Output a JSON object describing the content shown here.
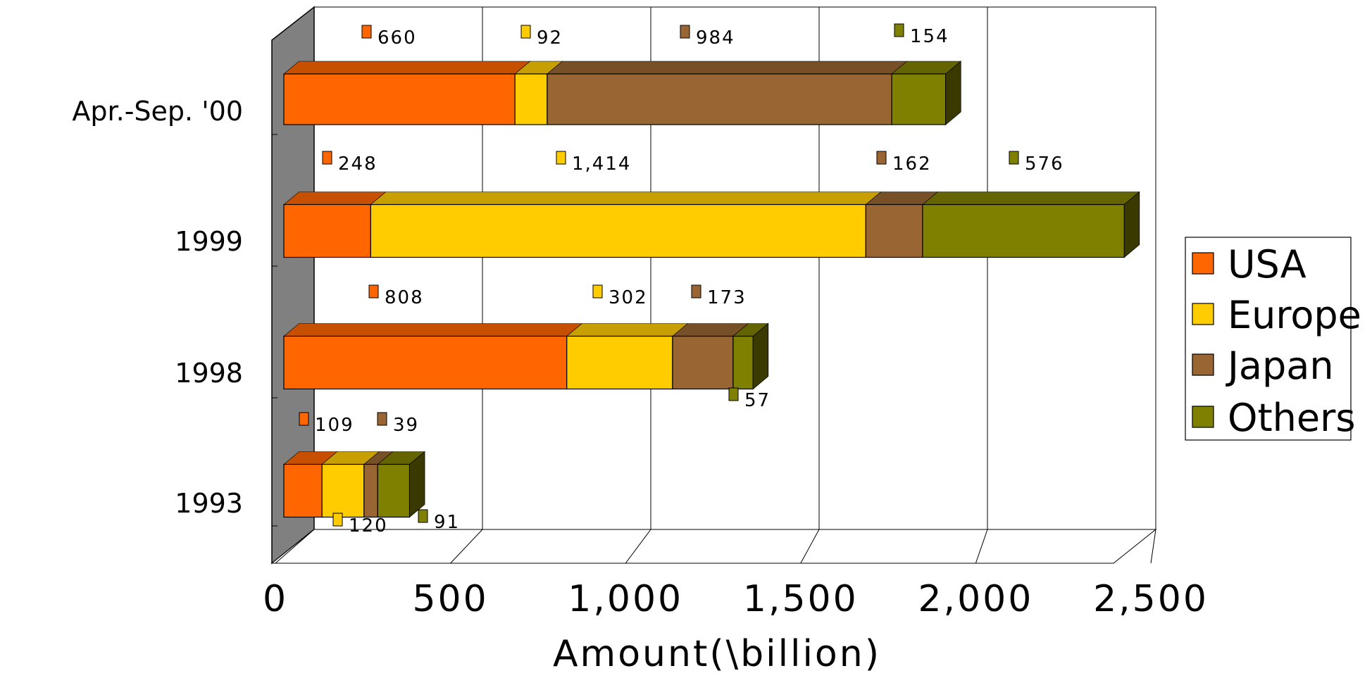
{
  "chart_data": {
    "type": "bar",
    "orientation": "horizontal",
    "stacked": true,
    "three_d": true,
    "categories": [
      "Apr.-Sep. '00",
      "1999",
      "1998",
      "1993"
    ],
    "series": [
      {
        "name": "USA",
        "color": "#FF6600",
        "values": [
          660,
          248,
          808,
          109
        ],
        "labels": [
          "660",
          "248",
          "808",
          "109"
        ]
      },
      {
        "name": "Europe",
        "color": "#FFCC00",
        "values": [
          92,
          1414,
          302,
          120
        ],
        "labels": [
          "92",
          "1,414",
          "302",
          "120"
        ]
      },
      {
        "name": "Japan",
        "color": "#996633",
        "values": [
          984,
          162,
          173,
          39
        ],
        "labels": [
          "984",
          "162",
          "173",
          "39"
        ]
      },
      {
        "name": "Others",
        "color": "#808000",
        "values": [
          154,
          576,
          57,
          91
        ],
        "labels": [
          "154",
          "576",
          "57",
          "91"
        ]
      }
    ],
    "xlabel": "Amount(\\billion)",
    "xlim": [
      0,
      2500
    ],
    "xticks": [
      "0",
      "500",
      "1,000",
      "1,500",
      "2,000",
      "2,500"
    ],
    "grid": true,
    "legend": "right"
  }
}
